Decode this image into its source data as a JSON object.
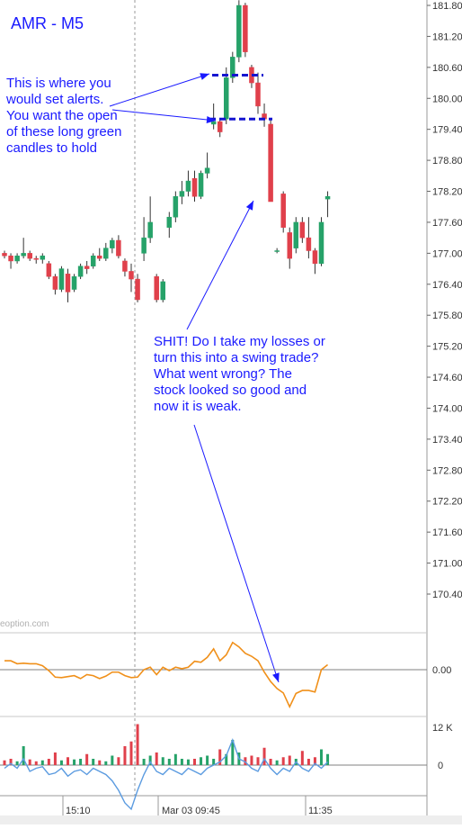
{
  "chart_data": {
    "type": "candlestick",
    "title": "AMR - M5",
    "watermark": "eoption.com",
    "price_axis": {
      "ticks": [
        "181.80",
        "181.20",
        "180.60",
        "180.00",
        "179.40",
        "178.80",
        "178.20",
        "177.60",
        "177.00",
        "176.40",
        "175.80",
        "175.20",
        "174.60",
        "174.00",
        "173.40",
        "172.80",
        "172.20",
        "171.60",
        "171.00",
        "170.40"
      ],
      "range": [
        169.8,
        182.0
      ]
    },
    "oscillator_axis": {
      "ticks": [
        "0.00"
      ]
    },
    "volume_axis": {
      "ticks": [
        "12 K",
        "0"
      ]
    },
    "time_axis": {
      "ticks": [
        "15:10",
        "Mar 03 09:45",
        "11:35"
      ]
    },
    "colors": {
      "up": "#26a269",
      "down": "#e0404b",
      "oscillator": "#f0901a",
      "volume_line": "#5b9be0",
      "annotation": "#1a1aff",
      "alert_line": "#1515d0"
    },
    "candles": [
      {
        "o": 177.0,
        "h": 177.05,
        "l": 176.9,
        "c": 176.95
      },
      {
        "o": 176.95,
        "h": 177.0,
        "l": 176.7,
        "c": 176.85
      },
      {
        "o": 176.85,
        "h": 177.0,
        "l": 176.8,
        "c": 176.95
      },
      {
        "o": 176.95,
        "h": 177.3,
        "l": 176.9,
        "c": 177.0
      },
      {
        "o": 177.0,
        "h": 177.05,
        "l": 176.85,
        "c": 176.9
      },
      {
        "o": 176.9,
        "h": 176.95,
        "l": 176.8,
        "c": 176.88
      },
      {
        "o": 176.88,
        "h": 177.0,
        "l": 176.8,
        "c": 176.95
      },
      {
        "o": 176.8,
        "h": 176.85,
        "l": 176.5,
        "c": 176.55
      },
      {
        "o": 176.55,
        "h": 176.6,
        "l": 176.2,
        "c": 176.3
      },
      {
        "o": 176.3,
        "h": 176.75,
        "l": 176.25,
        "c": 176.7
      },
      {
        "o": 176.6,
        "h": 176.7,
        "l": 176.05,
        "c": 176.25
      },
      {
        "o": 176.3,
        "h": 176.6,
        "l": 176.25,
        "c": 176.55
      },
      {
        "o": 176.55,
        "h": 176.8,
        "l": 176.5,
        "c": 176.75
      },
      {
        "o": 176.75,
        "h": 176.85,
        "l": 176.6,
        "c": 176.7
      },
      {
        "o": 176.75,
        "h": 177.0,
        "l": 176.7,
        "c": 176.95
      },
      {
        "o": 176.95,
        "h": 177.1,
        "l": 176.85,
        "c": 176.9
      },
      {
        "o": 176.9,
        "h": 177.2,
        "l": 176.85,
        "c": 177.1
      },
      {
        "o": 177.1,
        "h": 177.3,
        "l": 177.0,
        "c": 177.25
      },
      {
        "o": 177.25,
        "h": 177.35,
        "l": 176.9,
        "c": 176.95
      },
      {
        "o": 176.85,
        "h": 176.9,
        "l": 176.55,
        "c": 176.65
      },
      {
        "o": 176.65,
        "h": 176.8,
        "l": 176.25,
        "c": 176.5
      },
      {
        "o": 176.5,
        "h": 176.6,
        "l": 176.05,
        "c": 176.1
      },
      {
        "o": 177.0,
        "h": 177.7,
        "l": 176.85,
        "c": 177.3
      },
      {
        "o": 177.3,
        "h": 178.1,
        "l": 177.2,
        "c": 177.6
      },
      {
        "o": 176.55,
        "h": 176.6,
        "l": 176.05,
        "c": 176.1
      },
      {
        "o": 176.1,
        "h": 176.5,
        "l": 176.05,
        "c": 176.45
      },
      {
        "o": 177.5,
        "h": 177.8,
        "l": 177.3,
        "c": 177.7
      },
      {
        "o": 177.7,
        "h": 178.2,
        "l": 177.6,
        "c": 178.1
      },
      {
        "o": 178.1,
        "h": 178.4,
        "l": 177.95,
        "c": 178.2
      },
      {
        "o": 178.2,
        "h": 178.6,
        "l": 178.1,
        "c": 178.4
      },
      {
        "o": 178.45,
        "h": 178.6,
        "l": 178.0,
        "c": 178.1
      },
      {
        "o": 178.1,
        "h": 178.6,
        "l": 178.05,
        "c": 178.55
      },
      {
        "o": 178.55,
        "h": 178.95,
        "l": 178.45,
        "c": 178.65
      },
      {
        "o": 179.5,
        "h": 179.9,
        "l": 179.4,
        "c": 179.55
      },
      {
        "o": 179.55,
        "h": 179.6,
        "l": 179.25,
        "c": 179.35
      },
      {
        "o": 179.6,
        "h": 180.6,
        "l": 179.5,
        "c": 180.4
      },
      {
        "o": 180.4,
        "h": 180.9,
        "l": 180.3,
        "c": 180.8
      },
      {
        "o": 180.8,
        "h": 181.9,
        "l": 180.7,
        "c": 181.8
      },
      {
        "o": 181.8,
        "h": 181.85,
        "l": 180.8,
        "c": 180.9
      },
      {
        "o": 180.6,
        "h": 180.65,
        "l": 180.2,
        "c": 180.3
      },
      {
        "o": 180.3,
        "h": 180.5,
        "l": 179.7,
        "c": 179.85
      },
      {
        "o": 179.7,
        "h": 179.9,
        "l": 179.45,
        "c": 179.6
      },
      {
        "o": 179.5,
        "h": 179.6,
        "l": 178.0,
        "c": 178.0
      },
      {
        "o": 177.05,
        "h": 177.1,
        "l": 177.0,
        "c": 177.05
      },
      {
        "o": 178.15,
        "h": 178.2,
        "l": 177.4,
        "c": 177.5
      },
      {
        "o": 177.4,
        "h": 177.5,
        "l": 176.7,
        "c": 176.9
      },
      {
        "o": 177.1,
        "h": 177.7,
        "l": 177.0,
        "c": 177.6
      },
      {
        "o": 177.6,
        "h": 177.7,
        "l": 177.2,
        "c": 177.3
      },
      {
        "o": 177.3,
        "h": 177.7,
        "l": 176.9,
        "c": 177.05
      },
      {
        "o": 177.05,
        "h": 177.1,
        "l": 176.6,
        "c": 176.8
      },
      {
        "o": 176.8,
        "h": 177.7,
        "l": 176.75,
        "c": 177.6
      },
      {
        "o": 178.05,
        "h": 178.2,
        "l": 177.7,
        "c": 178.1
      }
    ],
    "oscillator": [
      0.18,
      0.18,
      0.12,
      0.13,
      0.12,
      0.12,
      0.08,
      -0.02,
      -0.15,
      -0.16,
      -0.14,
      -0.12,
      -0.18,
      -0.1,
      -0.12,
      -0.18,
      -0.13,
      -0.05,
      -0.05,
      -0.12,
      -0.16,
      -0.15,
      0.0,
      0.05,
      -0.1,
      0.05,
      -0.02,
      0.05,
      0.02,
      0.05,
      0.17,
      0.15,
      0.25,
      0.42,
      0.18,
      0.3,
      0.55,
      0.46,
      0.33,
      0.27,
      0.18,
      -0.05,
      -0.24,
      -0.38,
      -0.47,
      -0.75,
      -0.48,
      -0.42,
      -0.42,
      -0.45,
      0.0,
      0.1
    ],
    "volume": [
      1.5,
      2.0,
      1.2,
      6.0,
      1.8,
      1.2,
      1.5,
      2.0,
      4.0,
      1.5,
      2.5,
      1.8,
      2.0,
      3.5,
      2.0,
      1.5,
      1.2,
      3.0,
      2.5,
      6.0,
      7.5,
      13.0,
      2.0,
      3.0,
      4.0,
      2.5,
      2.0,
      3.5,
      2.0,
      1.8,
      2.0,
      2.5,
      3.0,
      2.0,
      5.0,
      3.5,
      8.0,
      4.0,
      2.5,
      3.0,
      2.5,
      5.5,
      2.0,
      1.5,
      2.5,
      3.0,
      2.0,
      4.5,
      2.0,
      2.5,
      5.0,
      3.5
    ],
    "volume_avg": [
      -1.0,
      0.5,
      -1.0,
      2.0,
      -2.0,
      -1.0,
      -0.5,
      -3.0,
      -2.5,
      -1.0,
      -3.5,
      -2.0,
      -1.5,
      -3.0,
      -1.0,
      -2.0,
      -3.0,
      -5.0,
      -8.0,
      -12.0,
      -14.0,
      -8.0,
      -3.0,
      1.0,
      -2.0,
      -3.0,
      -1.0,
      -2.0,
      -3.0,
      -1.0,
      -2.0,
      -3.0,
      -1.0,
      0.0,
      1.0,
      3.0,
      8.0,
      2.0,
      1.0,
      -1.0,
      -2.0,
      2.0,
      -1.0,
      -3.0,
      -1.0,
      -2.0,
      1.0,
      -1.0,
      -2.0,
      0.5,
      -1.0,
      1.0
    ],
    "annotations": [
      "This is where you\nwould set alerts.\nYou want the open\nof these long green\ncandles to hold",
      "SHIT! Do I take my losses or\nturn this into a swing trade?\nWhat went wrong? The\nstock looked so good and\nnow it is weak."
    ],
    "alert_levels": [
      180.45,
      179.6
    ]
  }
}
